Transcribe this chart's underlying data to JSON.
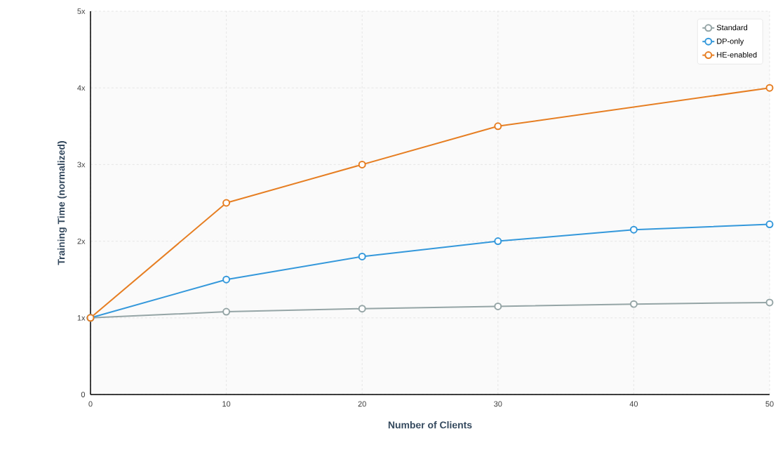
{
  "chart_data": {
    "type": "line",
    "xlabel": "Number of Clients",
    "ylabel": "Training Time (normalized)",
    "x": [
      0,
      10,
      20,
      30,
      40,
      50
    ],
    "series": [
      {
        "name": "Standard",
        "color": "#95a5a6",
        "values": [
          1,
          1.08,
          1.12,
          1.15,
          1.18,
          1.2
        ]
      },
      {
        "name": "DP-only",
        "color": "#3498db",
        "values": [
          1,
          1.5,
          1.8,
          2.0,
          2.15,
          2.22
        ]
      },
      {
        "name": "HE-enabled",
        "color": "#e67e22",
        "values": [
          1,
          2.5,
          3.0,
          3.5,
          null,
          4.0
        ]
      }
    ],
    "xlim": [
      0,
      50
    ],
    "xticks": [
      0,
      10,
      20,
      30,
      40,
      50
    ],
    "ylim": [
      0,
      5
    ],
    "yticks": [
      0,
      {
        "value": 1,
        "label": "1x"
      },
      {
        "value": 2,
        "label": "2x"
      },
      {
        "value": 3,
        "label": "3x"
      },
      {
        "value": 4,
        "label": "4x"
      },
      {
        "value": 5,
        "label": "5x"
      }
    ],
    "grid": true,
    "legend": "top right",
    "marker": "circle",
    "line_style": "solid"
  }
}
